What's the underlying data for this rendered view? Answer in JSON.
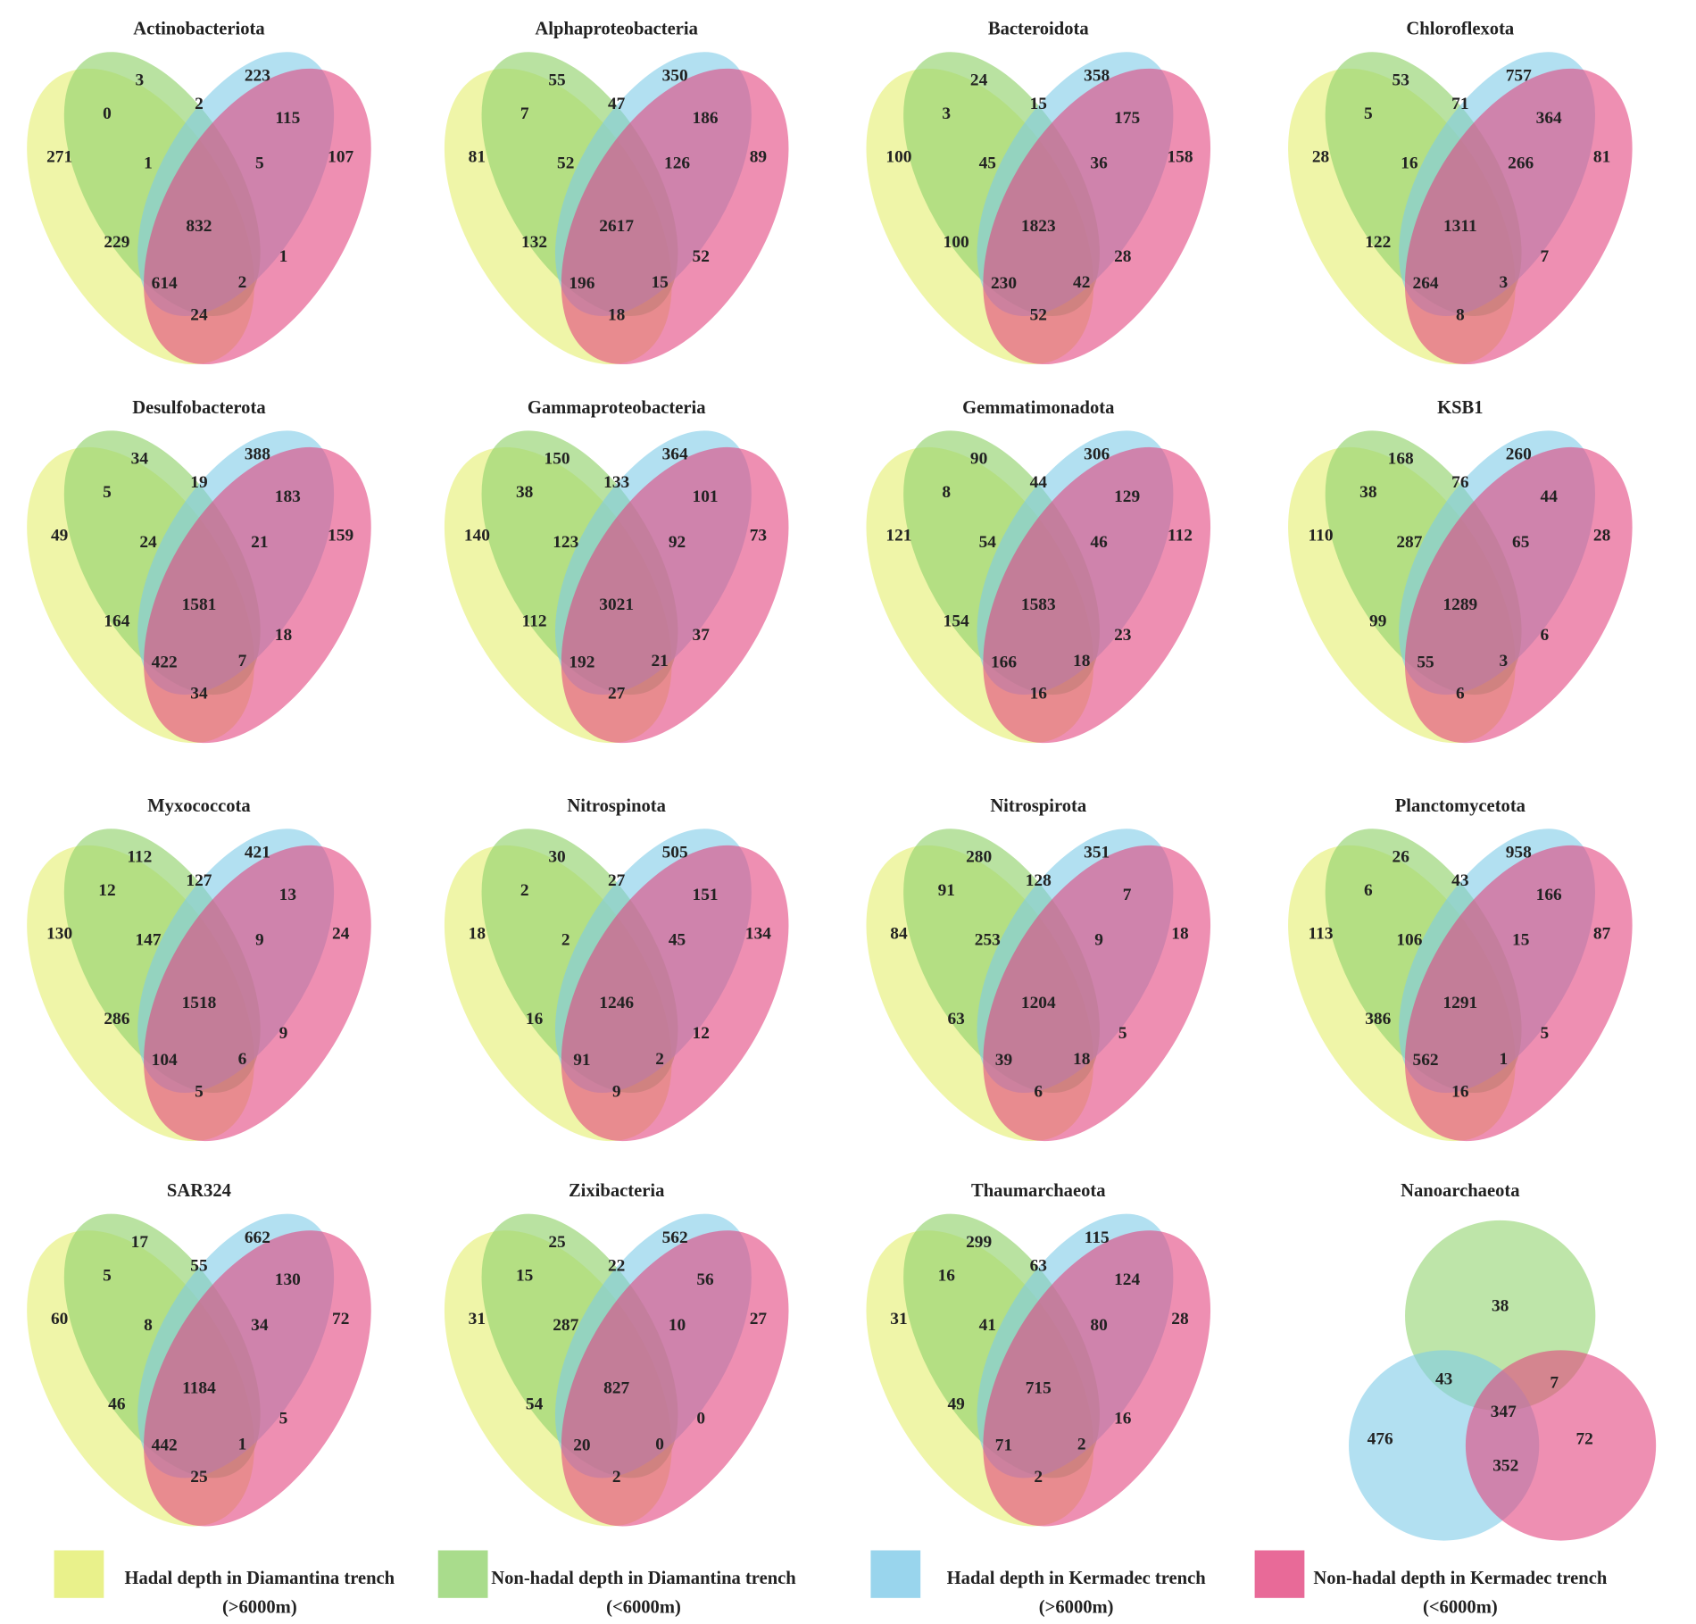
{
  "panels": [
    {
      "title": "Actinobacteriota",
      "counts": [
        271,
        3,
        223,
        107,
        0,
        2,
        115,
        1,
        5,
        832,
        229,
        1,
        614,
        2,
        24
      ]
    },
    {
      "title": "Alphaproteobacteria",
      "counts": [
        81,
        55,
        350,
        89,
        7,
        47,
        186,
        52,
        126,
        2617,
        132,
        52,
        196,
        15,
        18
      ]
    },
    {
      "title": "Bacteroidota",
      "counts": [
        100,
        24,
        358,
        158,
        3,
        15,
        175,
        45,
        36,
        1823,
        100,
        28,
        230,
        42,
        52
      ]
    },
    {
      "title": "Chloroflexota",
      "counts": [
        28,
        53,
        757,
        81,
        5,
        71,
        364,
        16,
        266,
        1311,
        122,
        7,
        264,
        3,
        8
      ]
    },
    {
      "title": "Desulfobacterota",
      "counts": [
        49,
        34,
        388,
        159,
        5,
        19,
        183,
        24,
        21,
        1581,
        164,
        18,
        422,
        7,
        34
      ]
    },
    {
      "title": "Gammaproteobacteria",
      "counts": [
        140,
        150,
        364,
        73,
        38,
        133,
        101,
        123,
        92,
        3021,
        112,
        37,
        192,
        21,
        27
      ]
    },
    {
      "title": "Gemmatimonadota",
      "counts": [
        121,
        90,
        306,
        112,
        8,
        44,
        129,
        54,
        46,
        1583,
        154,
        23,
        166,
        18,
        16
      ]
    },
    {
      "title": "KSB1",
      "counts": [
        110,
        168,
        260,
        28,
        38,
        76,
        44,
        287,
        65,
        1289,
        99,
        6,
        55,
        3,
        6
      ]
    },
    {
      "title": "Myxococcota",
      "counts": [
        130,
        112,
        421,
        24,
        12,
        127,
        13,
        147,
        9,
        1518,
        286,
        9,
        104,
        6,
        5
      ]
    },
    {
      "title": "Nitrospinota",
      "counts": [
        18,
        30,
        505,
        134,
        2,
        27,
        151,
        2,
        45,
        1246,
        16,
        12,
        91,
        2,
        9
      ]
    },
    {
      "title": "Nitrospirota",
      "counts": [
        84,
        280,
        351,
        18,
        91,
        128,
        7,
        253,
        9,
        1204,
        63,
        5,
        39,
        18,
        6
      ]
    },
    {
      "title": "Planctomycetota",
      "counts": [
        113,
        26,
        958,
        87,
        6,
        43,
        166,
        106,
        15,
        1291,
        386,
        5,
        562,
        1,
        16
      ]
    },
    {
      "title": "SAR324",
      "counts": [
        60,
        17,
        662,
        72,
        5,
        55,
        130,
        8,
        34,
        1184,
        46,
        5,
        442,
        1,
        25
      ]
    },
    {
      "title": "Zixibacteria",
      "counts": [
        31,
        25,
        562,
        27,
        15,
        22,
        56,
        287,
        10,
        827,
        54,
        0,
        20,
        0,
        2
      ]
    },
    {
      "title": "Thaumarchaeota",
      "counts": [
        31,
        299,
        115,
        28,
        16,
        63,
        124,
        41,
        80,
        715,
        49,
        16,
        71,
        2,
        2
      ]
    },
    {
      "title": "Nanoarchaeota",
      "counts": [
        38,
        43,
        7,
        347,
        476,
        72,
        352
      ]
    }
  ],
  "legend": [
    {
      "lines": [
        "Hadal depth in Diamantina trench",
        "(>6000m)"
      ]
    },
    {
      "lines": [
        "Non-hadal depth in Diamantina trench",
        "(<6000m)"
      ]
    },
    {
      "lines": [
        "Hadal depth in Kermadec trench",
        "(>6000m)"
      ]
    },
    {
      "lines": [
        "Non-hadal depth in Kermadec trench",
        "(<6000m)"
      ]
    }
  ]
}
